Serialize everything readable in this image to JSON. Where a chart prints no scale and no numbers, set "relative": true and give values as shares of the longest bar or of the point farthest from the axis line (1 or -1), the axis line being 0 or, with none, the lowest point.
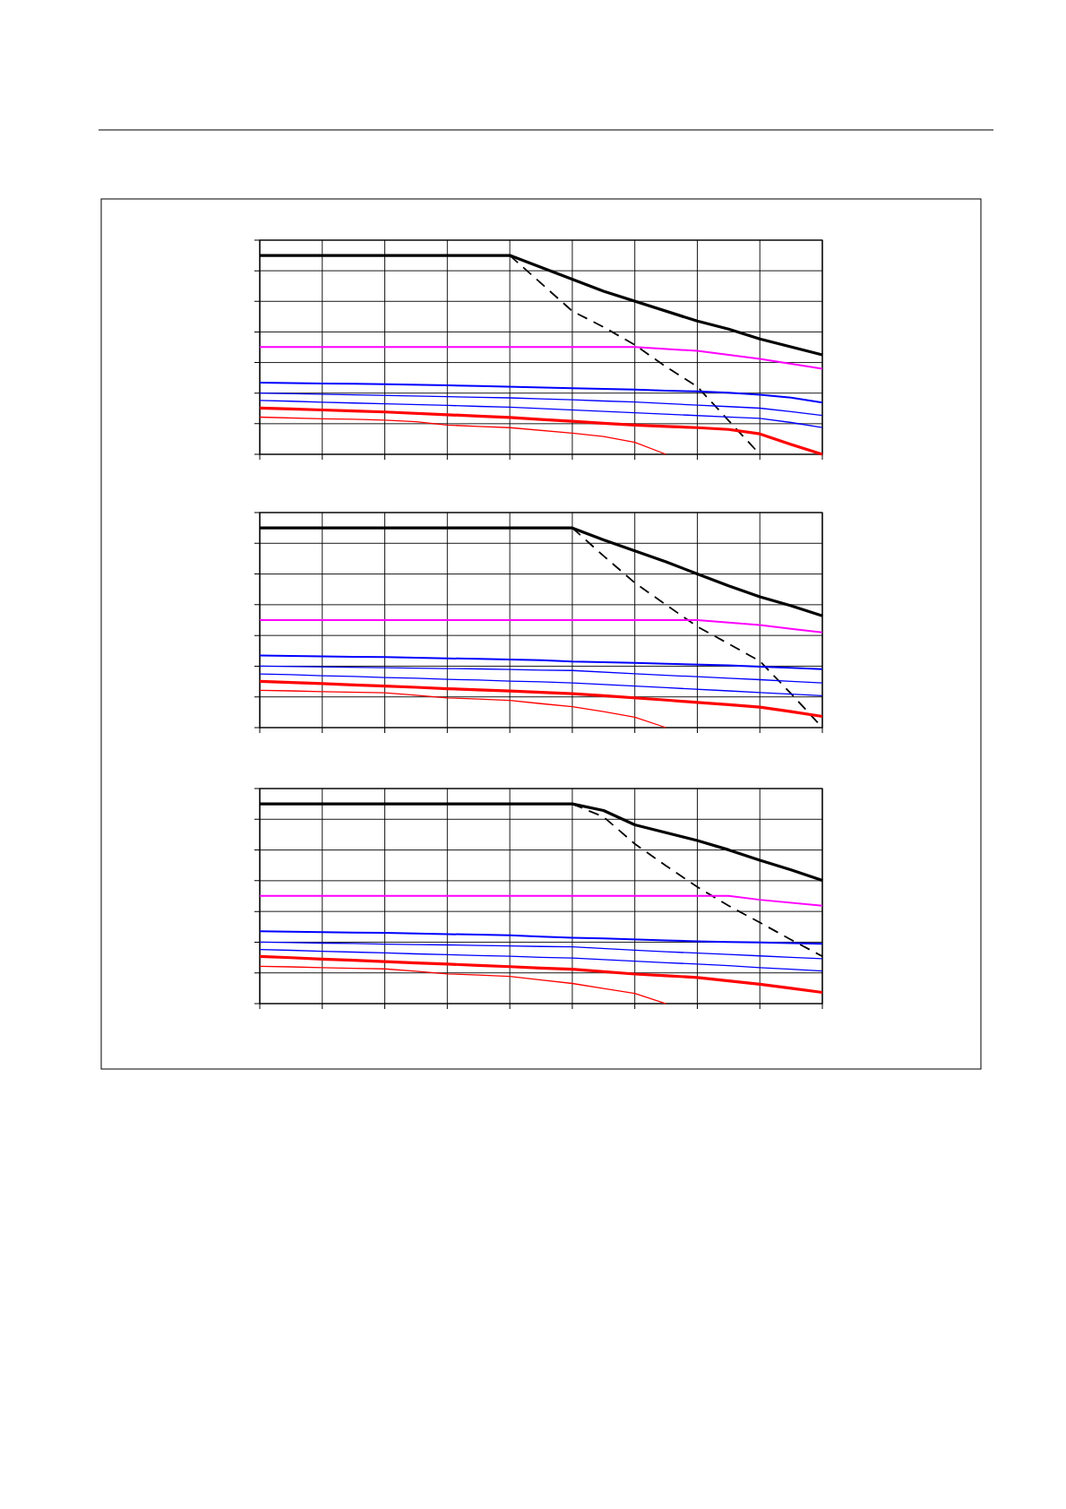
{
  "chart_data": [
    {
      "type": "line",
      "relative": true,
      "grid": true,
      "categories": [
        null,
        null,
        null,
        null,
        null,
        null,
        null,
        null,
        null,
        null,
        null,
        null,
        null,
        null,
        null,
        null,
        null,
        null,
        null
      ],
      "series": [
        {
          "color": "#000000",
          "values": [
            1,
            1,
            1,
            1,
            1,
            1,
            1,
            1,
            1,
            0.94,
            0.88,
            0.82,
            0.77,
            0.72,
            0.67,
            0.63,
            0.58,
            0.54,
            0.5
          ]
        },
        {
          "color": "#000000",
          "line_style": "dashed",
          "values": [
            null,
            null,
            null,
            null,
            null,
            null,
            null,
            null,
            1,
            0.86,
            0.72,
            0.64,
            0.55,
            0.44,
            0.34,
            0.17,
            0,
            null,
            null
          ]
        },
        {
          "color": "#ff00ff",
          "values": [
            0.54,
            0.54,
            0.54,
            0.54,
            0.54,
            0.54,
            0.54,
            0.54,
            0.54,
            0.54,
            0.54,
            0.54,
            0.54,
            0.53,
            0.52,
            0.5,
            0.48,
            0.455,
            0.43
          ]
        },
        {
          "color": "#0000ff",
          "values": [
            0.36,
            0.358,
            0.356,
            0.355,
            0.353,
            0.35,
            0.347,
            0.344,
            0.34,
            0.336,
            0.332,
            0.329,
            0.325,
            0.32,
            0.316,
            0.31,
            0.3,
            0.285,
            0.26
          ]
        },
        {
          "color": "#0000ff",
          "values": [
            0.308,
            0.305,
            0.302,
            0.299,
            0.296,
            0.293,
            0.29,
            0.287,
            0.284,
            0.279,
            0.274,
            0.268,
            0.263,
            0.255,
            0.247,
            0.24,
            0.232,
            0.215,
            0.195
          ]
        },
        {
          "color": "#0000ff",
          "values": [
            0.271,
            0.267,
            0.262,
            0.258,
            0.254,
            0.25,
            0.246,
            0.241,
            0.237,
            0.23,
            0.223,
            0.216,
            0.209,
            0.202,
            0.195,
            0.188,
            0.181,
            0.16,
            0.135
          ]
        },
        {
          "color": "#ff0000",
          "values": [
            0.233,
            0.228,
            0.223,
            0.218,
            0.213,
            0.206,
            0.199,
            0.192,
            0.185,
            0.175,
            0.166,
            0.156,
            0.147,
            0.14,
            0.134,
            0.125,
            0.103,
            0.05,
            0
          ]
        },
        {
          "color": "#ff0000",
          "values": [
            0.187,
            0.183,
            0.179,
            0.176,
            0.172,
            0.164,
            0.147,
            0.14,
            0.134,
            0.12,
            0.106,
            0.09,
            0.06,
            0,
            null,
            null,
            null,
            null,
            null
          ]
        }
      ]
    },
    {
      "type": "line",
      "relative": true,
      "grid": true,
      "categories": [
        null,
        null,
        null,
        null,
        null,
        null,
        null,
        null,
        null,
        null,
        null,
        null,
        null,
        null,
        null,
        null,
        null,
        null,
        null
      ],
      "series": [
        {
          "color": "#000000",
          "values": [
            1,
            1,
            1,
            1,
            1,
            1,
            1,
            1,
            1,
            1,
            1,
            0.94,
            0.885,
            0.83,
            0.77,
            0.71,
            0.655,
            0.61,
            0.56
          ]
        },
        {
          "color": "#000000",
          "line_style": "dashed",
          "values": [
            null,
            null,
            null,
            null,
            null,
            null,
            null,
            null,
            null,
            null,
            1,
            0.86,
            0.725,
            0.615,
            0.506,
            0.42,
            0.333,
            0.17,
            0
          ]
        },
        {
          "color": "#ff00ff",
          "values": [
            0.538,
            0.538,
            0.538,
            0.538,
            0.538,
            0.538,
            0.538,
            0.538,
            0.538,
            0.538,
            0.538,
            0.538,
            0.538,
            0.538,
            0.538,
            0.526,
            0.514,
            0.495,
            0.477
          ]
        },
        {
          "color": "#0000ff",
          "values": [
            0.361,
            0.359,
            0.357,
            0.355,
            0.353,
            0.35,
            0.347,
            0.344,
            0.341,
            0.338,
            0.331,
            0.328,
            0.324,
            0.32,
            0.316,
            0.312,
            0.305,
            0.299,
            0.293
          ]
        },
        {
          "color": "#0000ff",
          "values": [
            0.308,
            0.306,
            0.304,
            0.302,
            0.3,
            0.298,
            0.296,
            0.294,
            0.291,
            0.288,
            0.286,
            0.278,
            0.27,
            0.262,
            0.255,
            0.247,
            0.24,
            0.232,
            0.224
          ]
        },
        {
          "color": "#0000ff",
          "values": [
            0.269,
            0.265,
            0.26,
            0.256,
            0.251,
            0.247,
            0.242,
            0.238,
            0.233,
            0.229,
            0.224,
            0.216,
            0.208,
            0.2,
            0.192,
            0.184,
            0.176,
            0.168,
            0.16
          ]
        },
        {
          "color": "#ff0000",
          "values": [
            0.232,
            0.226,
            0.22,
            0.214,
            0.208,
            0.202,
            0.195,
            0.189,
            0.183,
            0.177,
            0.17,
            0.16,
            0.149,
            0.138,
            0.126,
            0.115,
            0.103,
            0.08,
            0.056
          ]
        },
        {
          "color": "#ff0000",
          "values": [
            0.187,
            0.184,
            0.18,
            0.177,
            0.174,
            0.162,
            0.149,
            0.143,
            0.136,
            0.12,
            0.105,
            0.08,
            0.052,
            0,
            null,
            null,
            null,
            null,
            null
          ]
        }
      ]
    },
    {
      "type": "line",
      "relative": true,
      "grid": true,
      "categories": [
        null,
        null,
        null,
        null,
        null,
        null,
        null,
        null,
        null,
        null,
        null,
        null,
        null,
        null,
        null,
        null,
        null,
        null,
        null
      ],
      "series": [
        {
          "color": "#000000",
          "values": [
            1,
            1,
            1,
            1,
            1,
            1,
            1,
            1,
            1,
            1,
            1,
            0.967,
            0.895,
            0.856,
            0.817,
            0.77,
            0.718,
            0.67,
            0.617
          ]
        },
        {
          "color": "#000000",
          "line_style": "dashed",
          "values": [
            null,
            null,
            null,
            null,
            null,
            null,
            null,
            null,
            null,
            null,
            1,
            0.935,
            0.8,
            0.69,
            0.584,
            0.49,
            0.406,
            0.32,
            0.237
          ]
        },
        {
          "color": "#ff00ff",
          "values": [
            0.54,
            0.54,
            0.54,
            0.54,
            0.54,
            0.54,
            0.54,
            0.54,
            0.54,
            0.54,
            0.54,
            0.54,
            0.54,
            0.54,
            0.54,
            0.54,
            0.52,
            0.505,
            0.49
          ]
        },
        {
          "color": "#0000ff",
          "values": [
            0.362,
            0.36,
            0.358,
            0.356,
            0.354,
            0.351,
            0.348,
            0.345,
            0.342,
            0.336,
            0.33,
            0.326,
            0.321,
            0.316,
            0.312,
            0.309,
            0.306,
            0.303,
            0.3
          ]
        },
        {
          "color": "#0000ff",
          "values": [
            0.308,
            0.306,
            0.303,
            0.301,
            0.298,
            0.296,
            0.294,
            0.291,
            0.289,
            0.286,
            0.284,
            0.276,
            0.268,
            0.26,
            0.253,
            0.246,
            0.239,
            0.232,
            0.225
          ]
        },
        {
          "color": "#0000ff",
          "values": [
            0.271,
            0.267,
            0.262,
            0.258,
            0.254,
            0.249,
            0.245,
            0.241,
            0.237,
            0.232,
            0.228,
            0.22,
            0.213,
            0.205,
            0.198,
            0.19,
            0.18,
            0.172,
            0.163
          ]
        },
        {
          "color": "#ff0000",
          "values": [
            0.236,
            0.23,
            0.223,
            0.217,
            0.21,
            0.204,
            0.198,
            0.191,
            0.185,
            0.178,
            0.172,
            0.16,
            0.148,
            0.14,
            0.131,
            0.114,
            0.097,
            0.077,
            0.056
          ]
        },
        {
          "color": "#ff0000",
          "values": [
            0.187,
            0.184,
            0.18,
            0.177,
            0.174,
            0.162,
            0.149,
            0.143,
            0.136,
            0.118,
            0.101,
            0.076,
            0.051,
            0,
            null,
            null,
            null,
            null,
            null
          ]
        }
      ]
    }
  ]
}
